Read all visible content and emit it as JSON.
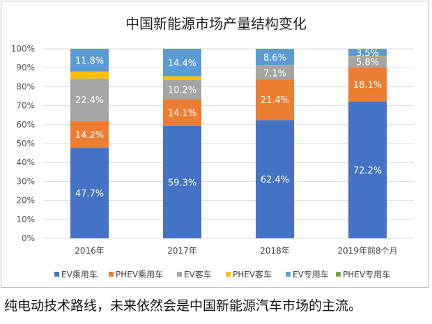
{
  "chart_data": {
    "type": "bar",
    "stacked": true,
    "title": "中国新能源市场产量结构变化",
    "categories": [
      "2016年",
      "2017年",
      "2018年",
      "2019年前8个月"
    ],
    "ylim": [
      0,
      100
    ],
    "yticks": [
      "0%",
      "10%",
      "20%",
      "30%",
      "40%",
      "50%",
      "60%",
      "70%",
      "80%",
      "90%",
      "100%"
    ],
    "grid": true,
    "legend_position": "bottom",
    "series": [
      {
        "name": "EV乘用车",
        "color": "#4472C4",
        "values": [
          47.7,
          59.3,
          62.4,
          72.2
        ],
        "labels": [
          "47.7%",
          "59.3%",
          "62.4%",
          "72.2%"
        ]
      },
      {
        "name": "PHEV乘用车",
        "color": "#ED7D31",
        "values": [
          14.2,
          14.1,
          21.4,
          18.1
        ],
        "labels": [
          "14.2%",
          "14.1%",
          "21.4%",
          "18.1%"
        ]
      },
      {
        "name": "EV客车",
        "color": "#A5A5A5",
        "values": [
          22.4,
          10.2,
          7.1,
          5.8
        ],
        "labels": [
          "22.4%",
          "10.2%",
          "7.1%",
          "5.8%"
        ]
      },
      {
        "name": "PHEV客车",
        "color": "#FFC000",
        "values": [
          3.7,
          1.9,
          0.3,
          0.2
        ],
        "labels": [
          "",
          "",
          "",
          ""
        ]
      },
      {
        "name": "EV专用车",
        "color": "#5B9BD5",
        "values": [
          11.8,
          14.4,
          8.6,
          3.5
        ],
        "labels": [
          "11.8%",
          "14.4%",
          "8.6%",
          "3.5%"
        ]
      },
      {
        "name": "PHEV专用车",
        "color": "#70AD47",
        "values": [
          0.2,
          0.1,
          0.2,
          0.2
        ],
        "labels": [
          "",
          "",
          "",
          ""
        ]
      }
    ]
  },
  "caption": "纯电动技术路线，未来依然会是中国新能源汽车市场的主流。"
}
